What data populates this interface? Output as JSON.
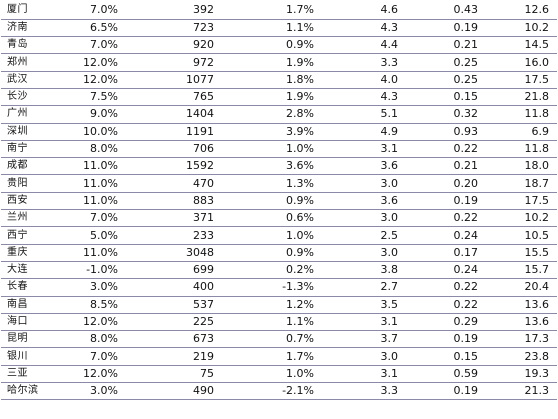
{
  "table": {
    "rows": [
      {
        "city": "厦门",
        "v1": "7.0%",
        "v2": "392",
        "v3": "1.7%",
        "v4": "4.6",
        "v5": "0.43",
        "v6": "12.6"
      },
      {
        "city": "济南",
        "v1": "6.5%",
        "v2": "723",
        "v3": "1.1%",
        "v4": "4.3",
        "v5": "0.19",
        "v6": "10.2"
      },
      {
        "city": "青岛",
        "v1": "7.0%",
        "v2": "920",
        "v3": "0.9%",
        "v4": "4.4",
        "v5": "0.21",
        "v6": "14.5"
      },
      {
        "city": "郑州",
        "v1": "12.0%",
        "v2": "972",
        "v3": "1.9%",
        "v4": "3.3",
        "v5": "0.25",
        "v6": "16.0"
      },
      {
        "city": "武汉",
        "v1": "12.0%",
        "v2": "1077",
        "v3": "1.8%",
        "v4": "4.0",
        "v5": "0.25",
        "v6": "17.5"
      },
      {
        "city": "长沙",
        "v1": "7.5%",
        "v2": "765",
        "v3": "1.9%",
        "v4": "4.3",
        "v5": "0.15",
        "v6": "21.8"
      },
      {
        "city": "广州",
        "v1": "9.0%",
        "v2": "1404",
        "v3": "2.8%",
        "v4": "5.1",
        "v5": "0.32",
        "v6": "11.8"
      },
      {
        "city": "深圳",
        "v1": "10.0%",
        "v2": "1191",
        "v3": "3.9%",
        "v4": "4.9",
        "v5": "0.93",
        "v6": "6.9"
      },
      {
        "city": "南宁",
        "v1": "8.0%",
        "v2": "706",
        "v3": "1.0%",
        "v4": "3.1",
        "v5": "0.22",
        "v6": "11.8"
      },
      {
        "city": "成都",
        "v1": "11.0%",
        "v2": "1592",
        "v3": "3.6%",
        "v4": "3.6",
        "v5": "0.21",
        "v6": "18.0"
      },
      {
        "city": "贵阳",
        "v1": "11.0%",
        "v2": "470",
        "v3": "1.3%",
        "v4": "3.0",
        "v5": "0.20",
        "v6": "18.7"
      },
      {
        "city": "西安",
        "v1": "11.0%",
        "v2": "883",
        "v3": "0.9%",
        "v4": "3.6",
        "v5": "0.19",
        "v6": "17.5"
      },
      {
        "city": "兰州",
        "v1": "7.0%",
        "v2": "371",
        "v3": "0.6%",
        "v4": "3.0",
        "v5": "0.22",
        "v6": "10.2"
      },
      {
        "city": "西宁",
        "v1": "5.0%",
        "v2": "233",
        "v3": "1.0%",
        "v4": "2.5",
        "v5": "0.24",
        "v6": "10.5"
      },
      {
        "city": "重庆",
        "v1": "11.0%",
        "v2": "3048",
        "v3": "0.9%",
        "v4": "3.0",
        "v5": "0.17",
        "v6": "15.5"
      },
      {
        "city": "大连",
        "v1": "-1.0%",
        "v2": "699",
        "v3": "0.2%",
        "v4": "3.8",
        "v5": "0.24",
        "v6": "15.7"
      },
      {
        "city": "长春",
        "v1": "3.0%",
        "v2": "400",
        "v3": "-1.3%",
        "v4": "2.7",
        "v5": "0.22",
        "v6": "20.4"
      },
      {
        "city": "南昌",
        "v1": "8.5%",
        "v2": "537",
        "v3": "1.2%",
        "v4": "3.5",
        "v5": "0.22",
        "v6": "13.6"
      },
      {
        "city": "海口",
        "v1": "12.0%",
        "v2": "225",
        "v3": "1.1%",
        "v4": "3.1",
        "v5": "0.29",
        "v6": "13.6"
      },
      {
        "city": "昆明",
        "v1": "8.0%",
        "v2": "673",
        "v3": "0.7%",
        "v4": "3.7",
        "v5": "0.19",
        "v6": "17.3"
      },
      {
        "city": "银川",
        "v1": "7.0%",
        "v2": "219",
        "v3": "1.7%",
        "v4": "3.0",
        "v5": "0.15",
        "v6": "23.8"
      },
      {
        "city": "三亚",
        "v1": "12.0%",
        "v2": "75",
        "v3": "1.0%",
        "v4": "3.1",
        "v5": "0.59",
        "v6": "19.3"
      },
      {
        "city": "哈尔滨",
        "v1": "3.0%",
        "v2": "490",
        "v3": "-2.1%",
        "v4": "3.3",
        "v5": "0.19",
        "v6": "21.3"
      }
    ]
  }
}
